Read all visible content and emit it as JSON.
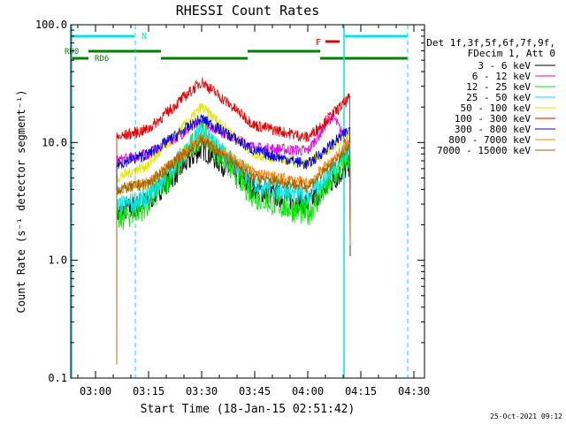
{
  "chart_data": {
    "type": "line",
    "title": "RHESSI Count Rates",
    "xlabel": "Start Time (18-Jan-15 02:51:42)",
    "ylabel": "Count Rate (s⁻¹ detector segment⁻¹)",
    "yscale": "log",
    "ylim": [
      0.1,
      100
    ],
    "y_ticks": [
      "0.1",
      "1.0",
      "10.0",
      "100.0"
    ],
    "x_ticks": [
      "03:00",
      "03:15",
      "03:30",
      "03:45",
      "04:00",
      "04:15",
      "04:30"
    ],
    "legend_placement": "right",
    "legend_header": [
      "Det 1f,3f,5f,6f,7f,9f,",
      "FDecim 1, Att 0"
    ],
    "timestamp": "25-Oct-2021 09:12",
    "flags": {
      "N_label": "N",
      "F_label": "F",
      "RD0_label": "RD0",
      "RD6_label": "RD6"
    },
    "series": [
      {
        "name": "3 - 6 keV",
        "color": "#000000",
        "points": [
          [
            "03:06",
            2.5
          ],
          [
            "03:15",
            3.2
          ],
          [
            "03:30",
            9.0
          ],
          [
            "03:45",
            4.0
          ],
          [
            "04:00",
            3.0
          ],
          [
            "04:12",
            6.5
          ]
        ]
      },
      {
        "name": "6 - 12 keV",
        "color": "#e600e6",
        "points": [
          [
            "03:06",
            7.0
          ],
          [
            "03:15",
            8.0
          ],
          [
            "03:30",
            15.0
          ],
          [
            "03:45",
            9.0
          ],
          [
            "04:00",
            8.5
          ],
          [
            "04:07",
            17.0
          ],
          [
            "04:12",
            9.0
          ]
        ]
      },
      {
        "name": "12 - 25 keV",
        "color": "#00e600",
        "points": [
          [
            "03:06",
            2.2
          ],
          [
            "03:15",
            3.0
          ],
          [
            "03:30",
            12.0
          ],
          [
            "03:45",
            3.5
          ],
          [
            "04:00",
            2.5
          ],
          [
            "04:12",
            8.0
          ]
        ]
      },
      {
        "name": "25 - 50 keV",
        "color": "#00e6e6",
        "points": [
          [
            "03:06",
            2.8
          ],
          [
            "03:15",
            3.5
          ],
          [
            "03:30",
            12.5
          ],
          [
            "03:45",
            4.5
          ],
          [
            "04:00",
            3.5
          ],
          [
            "04:12",
            9.0
          ]
        ]
      },
      {
        "name": "50 - 100 keV",
        "color": "#e6e600",
        "points": [
          [
            "03:06",
            5.0
          ],
          [
            "03:15",
            6.5
          ],
          [
            "03:30",
            20.0
          ],
          [
            "03:45",
            8.0
          ],
          [
            "04:00",
            6.5
          ],
          [
            "04:12",
            12.0
          ]
        ]
      },
      {
        "name": "100 - 300 keV",
        "color": "#e60000",
        "points": [
          [
            "03:06",
            11.0
          ],
          [
            "03:15",
            13.0
          ],
          [
            "03:30",
            33.0
          ],
          [
            "03:45",
            14.0
          ],
          [
            "04:00",
            11.0
          ],
          [
            "04:12",
            24.0
          ]
        ]
      },
      {
        "name": "300 - 800 keV",
        "color": "#0000e6",
        "points": [
          [
            "03:06",
            6.5
          ],
          [
            "03:15",
            8.0
          ],
          [
            "03:30",
            16.0
          ],
          [
            "03:45",
            8.5
          ],
          [
            "04:00",
            6.5
          ],
          [
            "04:12",
            13.0
          ]
        ]
      },
      {
        "name": "800 - 7000 keV",
        "color": "#ff8000",
        "points": [
          [
            "03:06",
            4.0
          ],
          [
            "03:15",
            4.5
          ],
          [
            "03:30",
            11.0
          ],
          [
            "03:45",
            5.5
          ],
          [
            "04:00",
            4.5
          ],
          [
            "04:12",
            10.0
          ]
        ]
      },
      {
        "name": "7000 - 15000 keV",
        "color": "#996600",
        "points": [
          [
            "03:06",
            4.0
          ],
          [
            "03:15",
            4.5
          ],
          [
            "03:30",
            10.5
          ],
          [
            "03:45",
            5.0
          ],
          [
            "04:00",
            4.2
          ],
          [
            "04:12",
            9.0
          ]
        ]
      }
    ]
  }
}
